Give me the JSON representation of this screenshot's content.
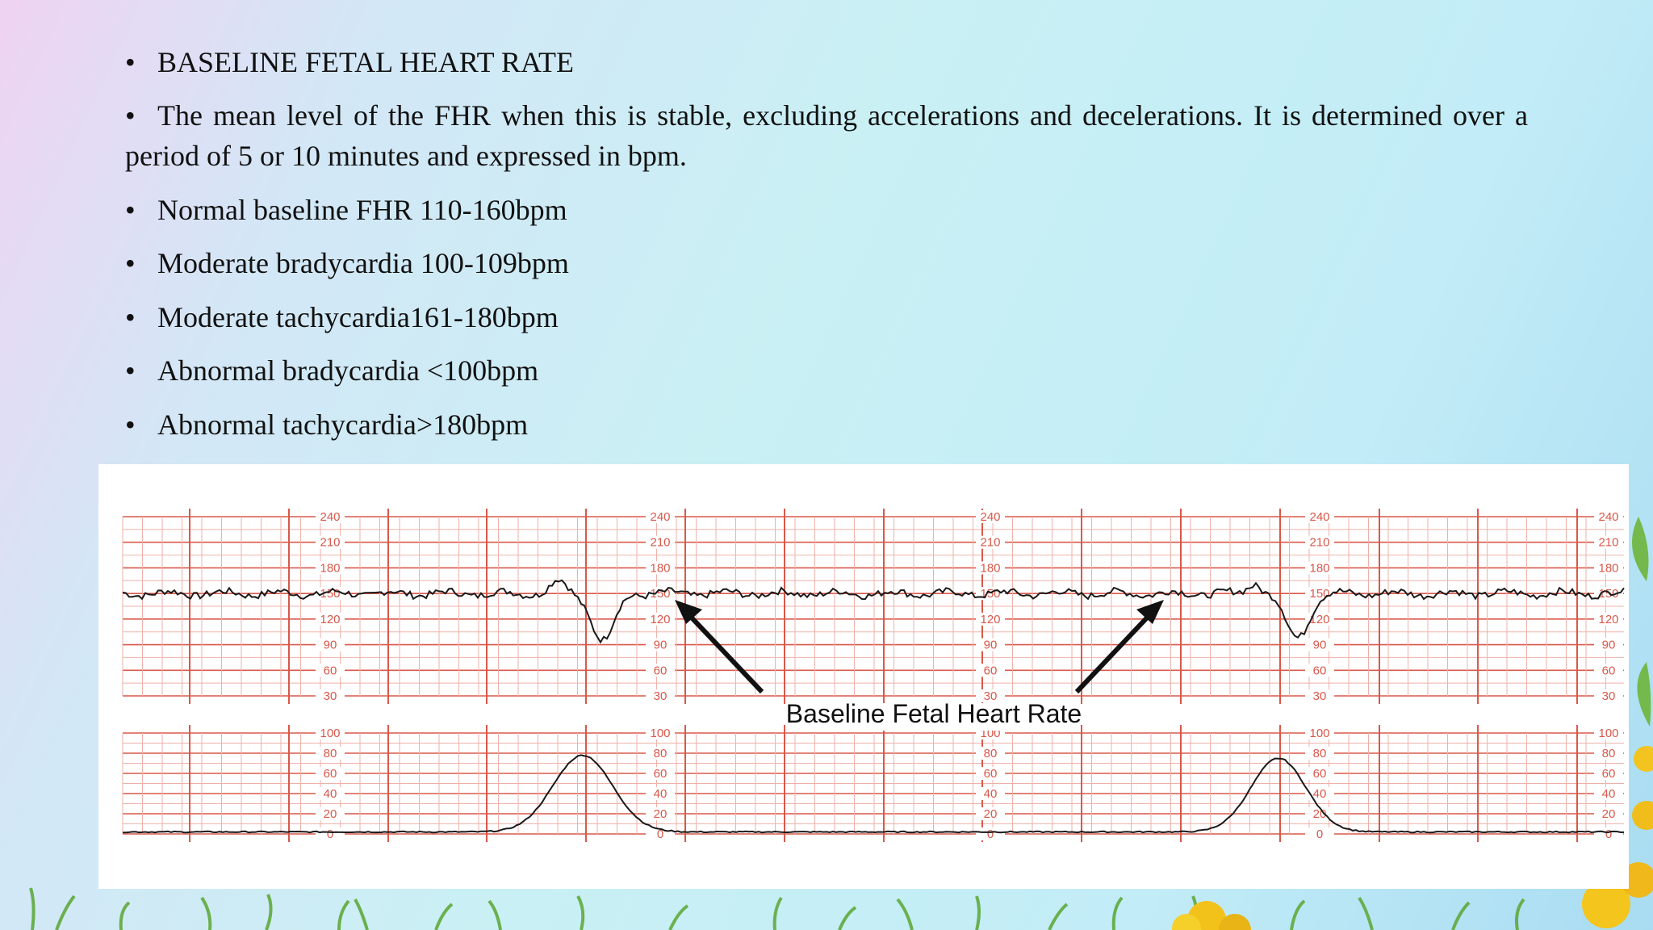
{
  "slide": {
    "bullets": [
      {
        "text": "BASELINE FETAL HEART RATE"
      },
      {
        "text": "The mean level of the FHR when this is stable, excluding accelerations and decelerations. It is determined over a period of 5 or 10 minutes and expressed in bpm."
      },
      {
        "text": "Normal baseline FHR 110-160bpm"
      },
      {
        "text": "Moderate bradycardia 100-109bpm"
      },
      {
        "text": "Moderate tachycardia161-180bpm"
      },
      {
        "text": "Abnormal bradycardia <100bpm"
      },
      {
        "text": "Abnormal tachycardia>180bpm"
      }
    ],
    "bullet_symbol": "•"
  },
  "figure": {
    "annotation": "Baseline Fetal Heart Rate",
    "fhr_scale": [
      "240",
      "210",
      "180",
      "150",
      "120",
      "90",
      "60",
      "30"
    ],
    "uc_scale": [
      "100",
      "80",
      "60",
      "40",
      "20",
      "0"
    ],
    "colors": {
      "grid": "#d9584a",
      "grid_light": "#efb2aa",
      "trace": "#1a1a1a",
      "arrow": "#111111"
    }
  }
}
